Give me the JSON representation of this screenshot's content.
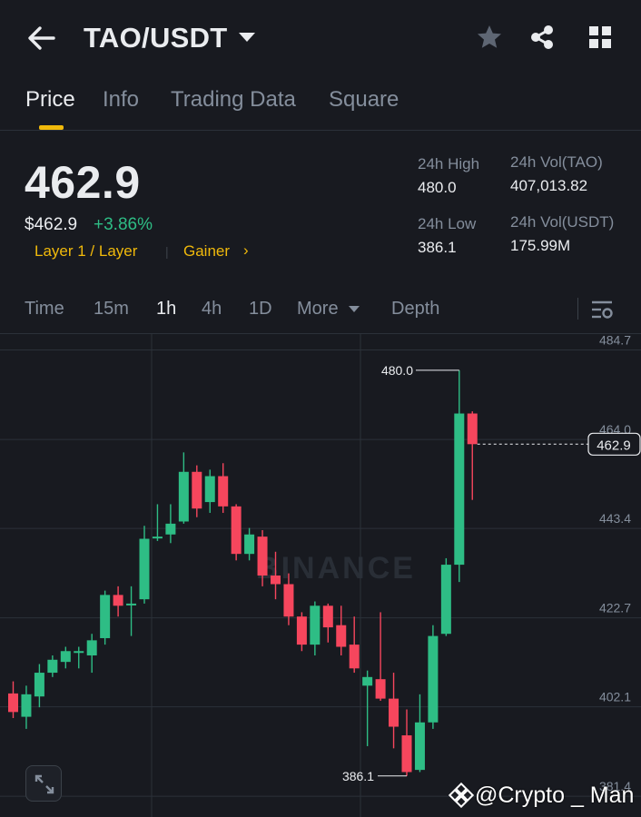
{
  "header": {
    "pair": "TAO/USDT",
    "icons": [
      "back-arrow-icon",
      "caret-down-icon",
      "star-icon",
      "share-icon",
      "grid-icon"
    ]
  },
  "tabs": [
    {
      "label": "Price",
      "active": true
    },
    {
      "label": "Info",
      "active": false
    },
    {
      "label": "Trading Data",
      "active": false
    },
    {
      "label": "Square",
      "active": false
    }
  ],
  "price": {
    "last": "462.9",
    "usd": "$462.9",
    "change": "+3.86%",
    "tag_category": "Layer 1 / Layer",
    "tag_gainer": "Gainer",
    "tag_arrow": "›"
  },
  "stats": {
    "high_label": "24h High",
    "high_value": "480.0",
    "low_label": "24h Low",
    "low_value": "386.1",
    "vol_base_label": "24h Vol(TAO)",
    "vol_base_value": "407,013.82",
    "vol_quote_label": "24h Vol(USDT)",
    "vol_quote_value": "175.99M"
  },
  "timeframes": {
    "items": [
      "Time",
      "15m",
      "1h",
      "4h",
      "1D",
      "More",
      "Depth"
    ],
    "active": "1h"
  },
  "colors": {
    "bg": "#181a20",
    "up": "#2ebd85",
    "down": "#f6465d",
    "accent": "#f0b90b",
    "muted": "#848e9c",
    "grid": "#2b3139"
  },
  "chart_data": {
    "type": "candlestick",
    "y_ticks": [
      "484.7",
      "464.0",
      "443.4",
      "422.7",
      "402.1",
      "381.4"
    ],
    "ylim": [
      376.6,
      488.6
    ],
    "last_price_label": "462.9",
    "high_label": "480.0",
    "low_label": "386.1",
    "watermark": "BINANCE",
    "candles": [
      {
        "o": 405.2,
        "c": 400.9,
        "h": 408.0,
        "l": 399.5
      },
      {
        "o": 399.8,
        "c": 405.0,
        "h": 407.0,
        "l": 397.0
      },
      {
        "o": 404.5,
        "c": 410.0,
        "h": 412.0,
        "l": 402.0
      },
      {
        "o": 410.0,
        "c": 413.0,
        "h": 414.0,
        "l": 409.0
      },
      {
        "o": 412.5,
        "c": 415.0,
        "h": 416.0,
        "l": 411.0
      },
      {
        "o": 414.8,
        "c": 415.0,
        "h": 416.0,
        "l": 411.0
      },
      {
        "o": 414.0,
        "c": 417.5,
        "h": 419.0,
        "l": 410.0
      },
      {
        "o": 418.0,
        "c": 428.0,
        "h": 429.0,
        "l": 416.5
      },
      {
        "o": 428.0,
        "c": 425.5,
        "h": 430.0,
        "l": 423.0
      },
      {
        "o": 426.0,
        "c": 426.0,
        "h": 430.0,
        "l": 418.5
      },
      {
        "o": 427.0,
        "c": 441.0,
        "h": 444.0,
        "l": 426.0
      },
      {
        "o": 441.5,
        "c": 441.5,
        "h": 449.0,
        "l": 440.5
      },
      {
        "o": 442.0,
        "c": 444.5,
        "h": 449.0,
        "l": 440.0
      },
      {
        "o": 445.0,
        "c": 456.5,
        "h": 461.0,
        "l": 444.5
      },
      {
        "o": 456.5,
        "c": 448.0,
        "h": 458.0,
        "l": 446.0
      },
      {
        "o": 449.5,
        "c": 455.5,
        "h": 457.0,
        "l": 447.0
      },
      {
        "o": 455.5,
        "c": 448.5,
        "h": 458.5,
        "l": 447.0
      },
      {
        "o": 448.5,
        "c": 437.5,
        "h": 449.0,
        "l": 436.0
      },
      {
        "o": 437.5,
        "c": 442.0,
        "h": 443.5,
        "l": 436.0
      },
      {
        "o": 441.5,
        "c": 432.5,
        "h": 443.0,
        "l": 430.0
      },
      {
        "o": 432.5,
        "c": 430.5,
        "h": 438.0,
        "l": 427.0
      },
      {
        "o": 430.5,
        "c": 423.0,
        "h": 433.0,
        "l": 421.0
      },
      {
        "o": 423.0,
        "c": 416.5,
        "h": 424.0,
        "l": 415.0
      },
      {
        "o": 416.5,
        "c": 425.5,
        "h": 426.5,
        "l": 414.0
      },
      {
        "o": 425.5,
        "c": 420.5,
        "h": 426.0,
        "l": 417.0
      },
      {
        "o": 421.0,
        "c": 416.0,
        "h": 425.5,
        "l": 414.0
      },
      {
        "o": 416.5,
        "c": 411.0,
        "h": 423.0,
        "l": 410.0
      },
      {
        "o": 407.0,
        "c": 409.0,
        "h": 410.5,
        "l": 393.0
      },
      {
        "o": 408.5,
        "c": 404.0,
        "h": 424.0,
        "l": 403.5
      },
      {
        "o": 404.0,
        "c": 397.5,
        "h": 410.0,
        "l": 392.5
      },
      {
        "o": 395.5,
        "c": 387.0,
        "h": 401.5,
        "l": 386.1
      },
      {
        "o": 387.5,
        "c": 398.5,
        "h": 405.0,
        "l": 387.0
      },
      {
        "o": 398.5,
        "c": 418.5,
        "h": 421.0,
        "l": 397.0
      },
      {
        "o": 419.0,
        "c": 435.0,
        "h": 436.5,
        "l": 418.5
      },
      {
        "o": 435.0,
        "c": 470.0,
        "h": 480.0,
        "l": 431.0
      },
      {
        "o": 470.0,
        "c": 462.9,
        "h": 470.5,
        "l": 450.0
      }
    ]
  },
  "watermark": {
    "handle": "@Crypto _ Man"
  }
}
